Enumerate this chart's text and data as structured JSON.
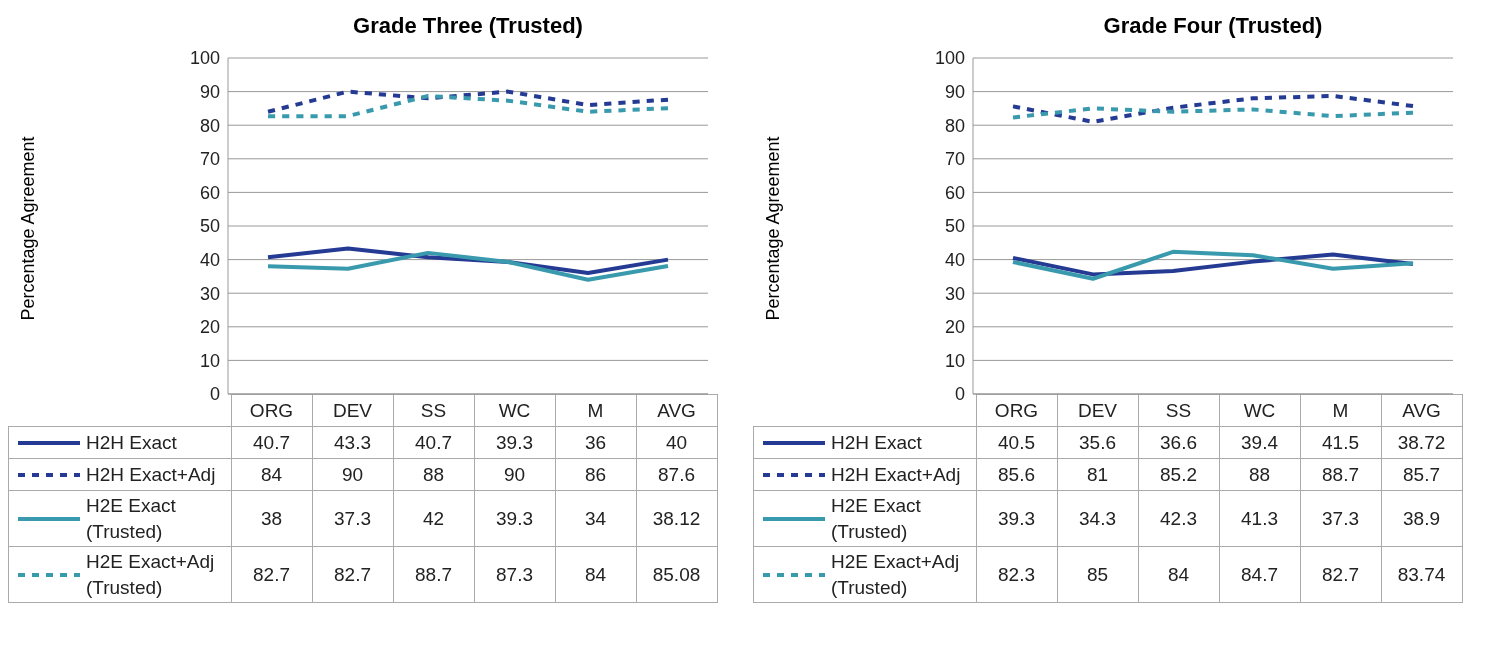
{
  "chart_data": [
    {
      "type": "line",
      "title": "Grade Three (Trusted)",
      "ylabel": "Percentage Agreement",
      "categories": [
        "ORG",
        "DEV",
        "SS",
        "WC",
        "M",
        "AVG"
      ],
      "ylim": [
        0,
        100
      ],
      "yticks": [
        0,
        10,
        20,
        30,
        40,
        50,
        60,
        70,
        80,
        90,
        100
      ],
      "grid": "y",
      "legend": "bottom",
      "data_labels": true,
      "marker": "none",
      "series": [
        {
          "name": "H2H Exact",
          "color": "#243a93",
          "line_style": "solid",
          "values": [
            40.7,
            43.3,
            40.7,
            39.3,
            36,
            40
          ]
        },
        {
          "name": "H2H Exact+Adj",
          "color": "#243a93",
          "line_style": "dashed",
          "values": [
            84,
            90,
            88,
            90,
            86,
            87.6
          ]
        },
        {
          "name": "H2E Exact (Trusted)",
          "color": "#3a9aad",
          "line_style": "solid",
          "values": [
            38,
            37.3,
            42,
            39.3,
            34,
            38.12
          ]
        },
        {
          "name": "H2E Exact+Adj (Trusted)",
          "color": "#3a9aad",
          "line_style": "dashed",
          "values": [
            82.7,
            82.7,
            88.7,
            87.3,
            84,
            85.08
          ]
        }
      ]
    },
    {
      "type": "line",
      "title": "Grade Four (Trusted)",
      "ylabel": "Percentage Agreement",
      "categories": [
        "ORG",
        "DEV",
        "SS",
        "WC",
        "M",
        "AVG"
      ],
      "ylim": [
        0,
        100
      ],
      "yticks": [
        0,
        10,
        20,
        30,
        40,
        50,
        60,
        70,
        80,
        90,
        100
      ],
      "grid": "y",
      "legend": "bottom",
      "data_labels": true,
      "marker": "none",
      "series": [
        {
          "name": "H2H Exact",
          "color": "#243a93",
          "line_style": "solid",
          "values": [
            40.5,
            35.6,
            36.6,
            39.4,
            41.5,
            38.72
          ]
        },
        {
          "name": "H2H Exact+Adj",
          "color": "#243a93",
          "line_style": "dashed",
          "values": [
            85.6,
            81,
            85.2,
            88,
            88.7,
            85.7
          ]
        },
        {
          "name": "H2E Exact (Trusted)",
          "color": "#3a9aad",
          "line_style": "solid",
          "values": [
            39.3,
            34.3,
            42.3,
            41.3,
            37.3,
            38.9
          ]
        },
        {
          "name": "H2E Exact+Adj (Trusted)",
          "color": "#3a9aad",
          "line_style": "dashed",
          "values": [
            82.3,
            85,
            84,
            84.7,
            82.7,
            83.74
          ]
        }
      ]
    }
  ]
}
